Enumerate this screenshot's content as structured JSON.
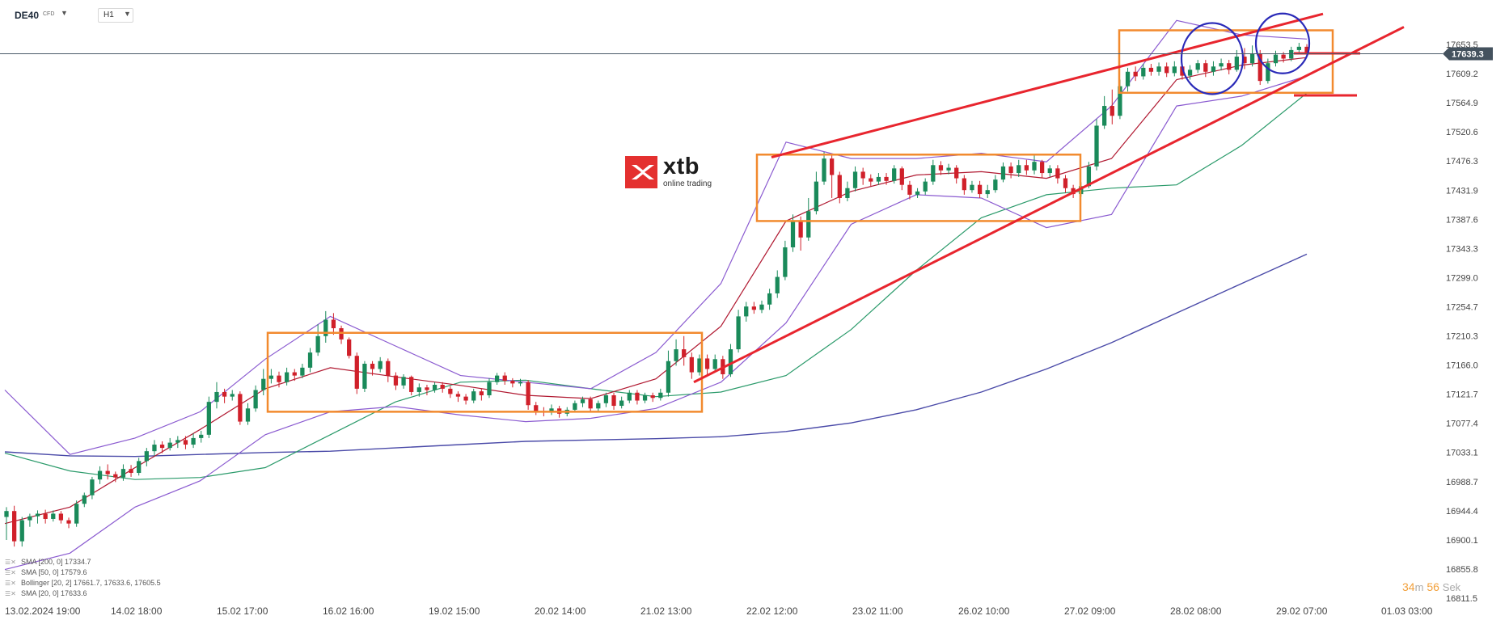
{
  "header": {
    "symbol": "DE40",
    "symbol_type": "CFD",
    "timeframe": "H1"
  },
  "logo": {
    "name": "xtb",
    "tagline": "online trading"
  },
  "current_price": "17639.3",
  "timer": {
    "minutes": "34",
    "minutes_unit": "m",
    "seconds": "56",
    "seconds_unit": "Sek"
  },
  "legend": [
    "SMA [200, 0]  17334.7",
    "SMA [50, 0]  17579.6",
    "Bollinger  [20, 2]  17661.7,  17633.6,  17605.5",
    "SMA [20, 0]  17633.6"
  ],
  "colors": {
    "up": "#1a8a5a",
    "down": "#d0202a",
    "sma200": "#4a4aa8",
    "sma50": "#2a9a6a",
    "sma20": "#b01830",
    "bollinger": "#8a5ad0",
    "box": "#f28a2e",
    "trend": "#e8252e",
    "circle": "#2a2ab8"
  },
  "chart_data": {
    "type": "line",
    "title": "",
    "price_axis": [
      "17653.5",
      "17609.2",
      "17564.9",
      "17520.6",
      "17476.3",
      "17431.9",
      "17387.6",
      "17343.3",
      "17299.0",
      "17254.7",
      "17210.3",
      "17166.0",
      "17121.7",
      "17077.4",
      "17033.1",
      "16988.7",
      "16944.4",
      "16900.1",
      "16855.8",
      "16811.5"
    ],
    "price_values": [
      17653.5,
      17609.2,
      17564.9,
      17520.6,
      17476.3,
      17431.9,
      17387.6,
      17343.3,
      17299.0,
      17254.7,
      17210.3,
      17166.0,
      17121.7,
      17077.4,
      17033.1,
      16988.7,
      16944.4,
      16900.1,
      16855.8,
      16811.5
    ],
    "ylim": [
      16811.5,
      17700
    ],
    "time_axis": [
      "13.02.2024  19:00",
      "14.02  18:00",
      "15.02  17:00",
      "16.02  16:00",
      "19.02  15:00",
      "20.02  14:00",
      "21.02  13:00",
      "22.02  12:00",
      "23.02  11:00",
      "26.02  10:00",
      "27.02  09:00",
      "28.02  08:00",
      "29.02  07:00",
      "01.03  03:00"
    ],
    "series": [
      {
        "name": "SMA [200, 0]",
        "values": [
          17034,
          17028,
          17027,
          17030,
          17033,
          17035,
          17040,
          17045,
          17050,
          17052,
          17054,
          17057,
          17065,
          17078,
          17098,
          17125,
          17160,
          17200,
          17245,
          17290,
          17334.7
        ]
      },
      {
        "name": "SMA [50, 0]",
        "values": [
          17032,
          17005,
          16992,
          16995,
          17010,
          17060,
          17110,
          17140,
          17143,
          17130,
          17118,
          17125,
          17150,
          17220,
          17310,
          17390,
          17425,
          17435,
          17440,
          17500,
          17579.6
        ]
      },
      {
        "name": "SMA [20, 0]",
        "values": [
          16925,
          16950,
          17010,
          17068,
          17130,
          17162,
          17148,
          17135,
          17120,
          17115,
          17145,
          17225,
          17385,
          17430,
          17455,
          17460,
          17450,
          17480,
          17600,
          17622,
          17633.6
        ]
      },
      {
        "name": "Bollinger upper",
        "values": [
          17128,
          17030,
          17055,
          17095,
          17175,
          17240,
          17195,
          17150,
          17140,
          17130,
          17185,
          17290,
          17505,
          17480,
          17480,
          17488,
          17475,
          17560,
          17690,
          17668,
          17661.7
        ]
      },
      {
        "name": "Bollinger lower",
        "values": [
          16855,
          16880,
          16950,
          16990,
          17060,
          17095,
          17103,
          17090,
          17080,
          17085,
          17100,
          17140,
          17230,
          17380,
          17425,
          17420,
          17375,
          17395,
          17560,
          17575,
          17605.5
        ]
      }
    ],
    "candles": [
      [
        16935,
        16944,
        16900,
        16950
      ],
      [
        16944,
        16898,
        16890,
        16952
      ],
      [
        16898,
        16930,
        16890,
        16935
      ],
      [
        16930,
        16936,
        16920,
        16940
      ],
      [
        16936,
        16940,
        16925,
        16945
      ],
      [
        16940,
        16932,
        16925,
        16946
      ],
      [
        16932,
        16940,
        16928,
        16945
      ],
      [
        16940,
        16930,
        16925,
        16944
      ],
      [
        16930,
        16925,
        16918,
        16934
      ],
      [
        16925,
        16955,
        16920,
        16960
      ],
      [
        16955,
        16968,
        16950,
        16972
      ],
      [
        16968,
        16992,
        16962,
        16996
      ],
      [
        16992,
        17005,
        16985,
        17012
      ],
      [
        17005,
        17000,
        16992,
        17015
      ],
      [
        17000,
        16995,
        16988,
        17004
      ],
      [
        16995,
        17008,
        16990,
        17015
      ],
      [
        17008,
        17002,
        16996,
        17014
      ],
      [
        17002,
        17020,
        16998,
        17025
      ],
      [
        17020,
        17035,
        17012,
        17040
      ],
      [
        17035,
        17045,
        17028,
        17052
      ],
      [
        17045,
        17040,
        17032,
        17050
      ],
      [
        17040,
        17048,
        17036,
        17055
      ],
      [
        17048,
        17052,
        17040,
        17058
      ],
      [
        17052,
        17045,
        17038,
        17058
      ],
      [
        17045,
        17055,
        17040,
        17062
      ],
      [
        17055,
        17060,
        17048,
        17066
      ],
      [
        17060,
        17110,
        17055,
        17118
      ],
      [
        17110,
        17125,
        17100,
        17140
      ],
      [
        17125,
        17118,
        17108,
        17130
      ],
      [
        17118,
        17122,
        17112,
        17128
      ],
      [
        17122,
        17080,
        17075,
        17126
      ],
      [
        17080,
        17100,
        17075,
        17108
      ],
      [
        17100,
        17128,
        17095,
        17135
      ],
      [
        17128,
        17145,
        17120,
        17160
      ],
      [
        17145,
        17150,
        17138,
        17160
      ],
      [
        17150,
        17140,
        17132,
        17156
      ],
      [
        17140,
        17155,
        17135,
        17162
      ],
      [
        17155,
        17150,
        17142,
        17160
      ],
      [
        17150,
        17162,
        17146,
        17168
      ],
      [
        17162,
        17185,
        17155,
        17192
      ],
      [
        17185,
        17210,
        17180,
        17228
      ],
      [
        17210,
        17235,
        17200,
        17248
      ],
      [
        17235,
        17222,
        17212,
        17245
      ],
      [
        17222,
        17205,
        17198,
        17226
      ],
      [
        17205,
        17180,
        17176,
        17208
      ],
      [
        17180,
        17130,
        17122,
        17185
      ],
      [
        17130,
        17168,
        17125,
        17172
      ],
      [
        17168,
        17160,
        17150,
        17172
      ],
      [
        17160,
        17172,
        17155,
        17178
      ],
      [
        17172,
        17150,
        17140,
        17176
      ],
      [
        17150,
        17135,
        17128,
        17155
      ],
      [
        17135,
        17148,
        17130,
        17152
      ],
      [
        17148,
        17125,
        17120,
        17150
      ],
      [
        17125,
        17132,
        17118,
        17138
      ],
      [
        17132,
        17128,
        17120,
        17136
      ],
      [
        17128,
        17136,
        17124,
        17140
      ],
      [
        17136,
        17130,
        17124,
        17140
      ],
      [
        17130,
        17122,
        17116,
        17134
      ],
      [
        17122,
        17118,
        17110,
        17126
      ],
      [
        17118,
        17112,
        17106,
        17122
      ],
      [
        17112,
        17126,
        17108,
        17130
      ],
      [
        17126,
        17120,
        17112,
        17130
      ],
      [
        17120,
        17140,
        17116,
        17146
      ],
      [
        17140,
        17150,
        17136,
        17154
      ],
      [
        17150,
        17142,
        17136,
        17155
      ],
      [
        17142,
        17138,
        17132,
        17146
      ],
      [
        17138,
        17140,
        17134,
        17145
      ],
      [
        17140,
        17105,
        17098,
        17143
      ],
      [
        17105,
        17096,
        17090,
        17110
      ],
      [
        17096,
        17094,
        17088,
        17102
      ],
      [
        17094,
        17100,
        17090,
        17106
      ],
      [
        17100,
        17092,
        17086,
        17104
      ],
      [
        17092,
        17098,
        17088,
        17102
      ],
      [
        17098,
        17108,
        17094,
        17112
      ],
      [
        17108,
        17114,
        17102,
        17118
      ],
      [
        17114,
        17100,
        17094,
        17118
      ],
      [
        17100,
        17108,
        17096,
        17112
      ],
      [
        17108,
        17120,
        17102,
        17124
      ],
      [
        17120,
        17104,
        17098,
        17124
      ],
      [
        17104,
        17112,
        17100,
        17118
      ],
      [
        17112,
        17124,
        17108,
        17128
      ],
      [
        17124,
        17112,
        17106,
        17128
      ],
      [
        17112,
        17120,
        17108,
        17124
      ],
      [
        17120,
        17116,
        17110,
        17124
      ],
      [
        17116,
        17124,
        17112,
        17130
      ],
      [
        17124,
        17172,
        17118,
        17188
      ],
      [
        17172,
        17190,
        17165,
        17205
      ],
      [
        17190,
        17178,
        17165,
        17210
      ],
      [
        17178,
        17155,
        17145,
        17185
      ],
      [
        17155,
        17176,
        17150,
        17182
      ],
      [
        17176,
        17160,
        17150,
        17182
      ],
      [
        17160,
        17175,
        17155,
        17182
      ],
      [
        17175,
        17152,
        17145,
        17180
      ],
      [
        17152,
        17190,
        17148,
        17198
      ],
      [
        17190,
        17240,
        17185,
        17250
      ],
      [
        17240,
        17255,
        17232,
        17262
      ],
      [
        17255,
        17250,
        17244,
        17262
      ],
      [
        17250,
        17258,
        17245,
        17264
      ],
      [
        17258,
        17275,
        17250,
        17282
      ],
      [
        17275,
        17300,
        17268,
        17310
      ],
      [
        17300,
        17345,
        17295,
        17355
      ],
      [
        17345,
        17385,
        17338,
        17395
      ],
      [
        17385,
        17360,
        17340,
        17392
      ],
      [
        17360,
        17400,
        17355,
        17420
      ],
      [
        17400,
        17445,
        17395,
        17460
      ],
      [
        17445,
        17480,
        17440,
        17490
      ],
      [
        17480,
        17455,
        17420,
        17486
      ],
      [
        17455,
        17420,
        17412,
        17460
      ],
      [
        17420,
        17435,
        17415,
        17445
      ],
      [
        17435,
        17460,
        17430,
        17468
      ],
      [
        17460,
        17450,
        17440,
        17466
      ],
      [
        17450,
        17445,
        17438,
        17456
      ],
      [
        17445,
        17452,
        17440,
        17458
      ],
      [
        17452,
        17446,
        17440,
        17458
      ],
      [
        17446,
        17465,
        17442,
        17470
      ],
      [
        17465,
        17440,
        17432,
        17468
      ],
      [
        17440,
        17425,
        17418,
        17446
      ],
      [
        17425,
        17430,
        17420,
        17435
      ],
      [
        17430,
        17445,
        17425,
        17450
      ],
      [
        17445,
        17470,
        17440,
        17478
      ],
      [
        17470,
        17462,
        17455,
        17476
      ],
      [
        17462,
        17466,
        17456,
        17472
      ],
      [
        17466,
        17450,
        17442,
        17470
      ],
      [
        17450,
        17432,
        17425,
        17455
      ],
      [
        17432,
        17440,
        17428,
        17446
      ],
      [
        17440,
        17426,
        17420,
        17446
      ],
      [
        17426,
        17432,
        17420,
        17440
      ],
      [
        17432,
        17448,
        17428,
        17455
      ],
      [
        17448,
        17468,
        17444,
        17474
      ],
      [
        17468,
        17458,
        17450,
        17474
      ],
      [
        17458,
        17470,
        17452,
        17478
      ],
      [
        17470,
        17462,
        17455,
        17478
      ],
      [
        17462,
        17475,
        17456,
        17486
      ],
      [
        17475,
        17458,
        17450,
        17478
      ],
      [
        17458,
        17465,
        17452,
        17470
      ],
      [
        17465,
        17450,
        17442,
        17470
      ],
      [
        17450,
        17435,
        17428,
        17455
      ],
      [
        17435,
        17426,
        17420,
        17440
      ],
      [
        17426,
        17438,
        17422,
        17444
      ],
      [
        17438,
        17468,
        17435,
        17475
      ],
      [
        17468,
        17530,
        17462,
        17540
      ],
      [
        17530,
        17560,
        17525,
        17575
      ],
      [
        17560,
        17545,
        17532,
        17585
      ],
      [
        17545,
        17590,
        17540,
        17600
      ],
      [
        17590,
        17612,
        17582,
        17618
      ],
      [
        17612,
        17605,
        17598,
        17620
      ],
      [
        17605,
        17618,
        17600,
        17624
      ],
      [
        17618,
        17612,
        17606,
        17624
      ],
      [
        17612,
        17620,
        17606,
        17626
      ],
      [
        17620,
        17610,
        17604,
        17626
      ],
      [
        17610,
        17620,
        17605,
        17628
      ],
      [
        17620,
        17606,
        17600,
        17624
      ],
      [
        17606,
        17615,
        17600,
        17622
      ],
      [
        17615,
        17625,
        17610,
        17630
      ],
      [
        17625,
        17612,
        17604,
        17630
      ],
      [
        17612,
        17620,
        17606,
        17628
      ],
      [
        17620,
        17625,
        17614,
        17632
      ],
      [
        17625,
        17615,
        17608,
        17630
      ],
      [
        17615,
        17635,
        17612,
        17645
      ],
      [
        17635,
        17625,
        17616,
        17648
      ],
      [
        17625,
        17640,
        17620,
        17652
      ],
      [
        17640,
        17598,
        17592,
        17645
      ],
      [
        17598,
        17625,
        17594,
        17632
      ],
      [
        17625,
        17638,
        17620,
        17644
      ],
      [
        17638,
        17632,
        17626,
        17642
      ],
      [
        17632,
        17645,
        17628,
        17650
      ],
      [
        17645,
        17650,
        17640,
        17656
      ],
      [
        17650,
        17639.3,
        17634,
        17654
      ]
    ]
  }
}
